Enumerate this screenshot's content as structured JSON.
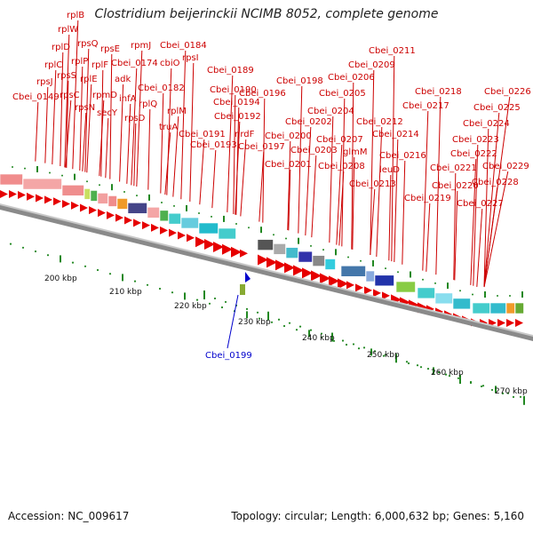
{
  "title": "Clostridium beijerinckii NCIMB 8052, complete genome",
  "footer": {
    "accession": "Accession: NC_009617",
    "topology": "Topology: circular; Length: 6,000,632 bp; Genes: 5,160"
  },
  "colors": {
    "label_red": "#cc0000",
    "highlight_blue": "#0000cc",
    "arrow_red": "#e60000",
    "tick_green": "#228822",
    "backbone_gray": "#8a8a8a"
  },
  "gene_labels": [
    {
      "t": "rplB"
    },
    {
      "t": "rplW"
    },
    {
      "t": "rpsQ"
    },
    {
      "t": "rplD"
    },
    {
      "t": "rpsE"
    },
    {
      "t": "rpmJ"
    },
    {
      "t": "Cbei_0184"
    },
    {
      "t": "rplC"
    },
    {
      "t": "rplP"
    },
    {
      "t": "rplF"
    },
    {
      "t": "Cbei_0174"
    },
    {
      "t": "cbiO"
    },
    {
      "t": "rpsI"
    },
    {
      "t": "rpsJ"
    },
    {
      "t": "rpsS"
    },
    {
      "t": "Cbei_0189"
    },
    {
      "t": "rplE"
    },
    {
      "t": "adk"
    },
    {
      "t": "Cbei_0182"
    },
    {
      "t": "Cbei_0190"
    },
    {
      "t": "rpsC"
    },
    {
      "t": "rpmD"
    },
    {
      "t": "infA"
    },
    {
      "t": "Cbei_0149"
    },
    {
      "t": "rplQ"
    },
    {
      "t": "rplM"
    },
    {
      "t": "Cbei_0192"
    },
    {
      "t": "rpsN"
    },
    {
      "t": "secY"
    },
    {
      "t": "rpsD"
    },
    {
      "t": "truA"
    },
    {
      "t": "Cbei_0191"
    },
    {
      "t": "Cbei_0193"
    },
    {
      "t": "Cbei_0194"
    },
    {
      "t": "Cbei_0196"
    },
    {
      "t": "nrdF"
    },
    {
      "t": "Cbei_0197"
    },
    {
      "t": "Cbei_0198"
    },
    {
      "t": "Cbei_0200"
    },
    {
      "t": "Cbei_0201"
    },
    {
      "t": "Cbei_0202"
    },
    {
      "t": "Cbei_0203"
    },
    {
      "t": "Cbei_0204"
    },
    {
      "t": "Cbei_0205"
    },
    {
      "t": "Cbei_0206"
    },
    {
      "t": "Cbei_0207"
    },
    {
      "t": "Cbei_0208"
    },
    {
      "t": "Cbei_0209"
    },
    {
      "t": "Cbei_0211"
    },
    {
      "t": "glmM"
    },
    {
      "t": "Cbei_0212"
    },
    {
      "t": "Cbei_0213"
    },
    {
      "t": "Cbei_0214"
    },
    {
      "t": "Cbei_0216"
    },
    {
      "t": "leuD"
    },
    {
      "t": "Cbei_0217"
    },
    {
      "t": "Cbei_0218"
    },
    {
      "t": "Cbei_0219"
    },
    {
      "t": "Cbei_0220"
    },
    {
      "t": "Cbei_0221"
    },
    {
      "t": "Cbei_0222"
    },
    {
      "t": "Cbei_0223"
    },
    {
      "t": "Cbei_0224"
    },
    {
      "t": "Cbei_0225"
    },
    {
      "t": "Cbei_0226"
    },
    {
      "t": "Cbei_0227"
    },
    {
      "t": "Cbei_0228"
    },
    {
      "t": "Cbei_0229"
    }
  ],
  "highlight_label": "Cbei_0199",
  "scale_labels": [
    "200 kbp",
    "210 kbp",
    "220 kbp",
    "230 kbp",
    "240 kbp",
    "250 kbp",
    "260 kbp",
    "270 kbp"
  ]
}
